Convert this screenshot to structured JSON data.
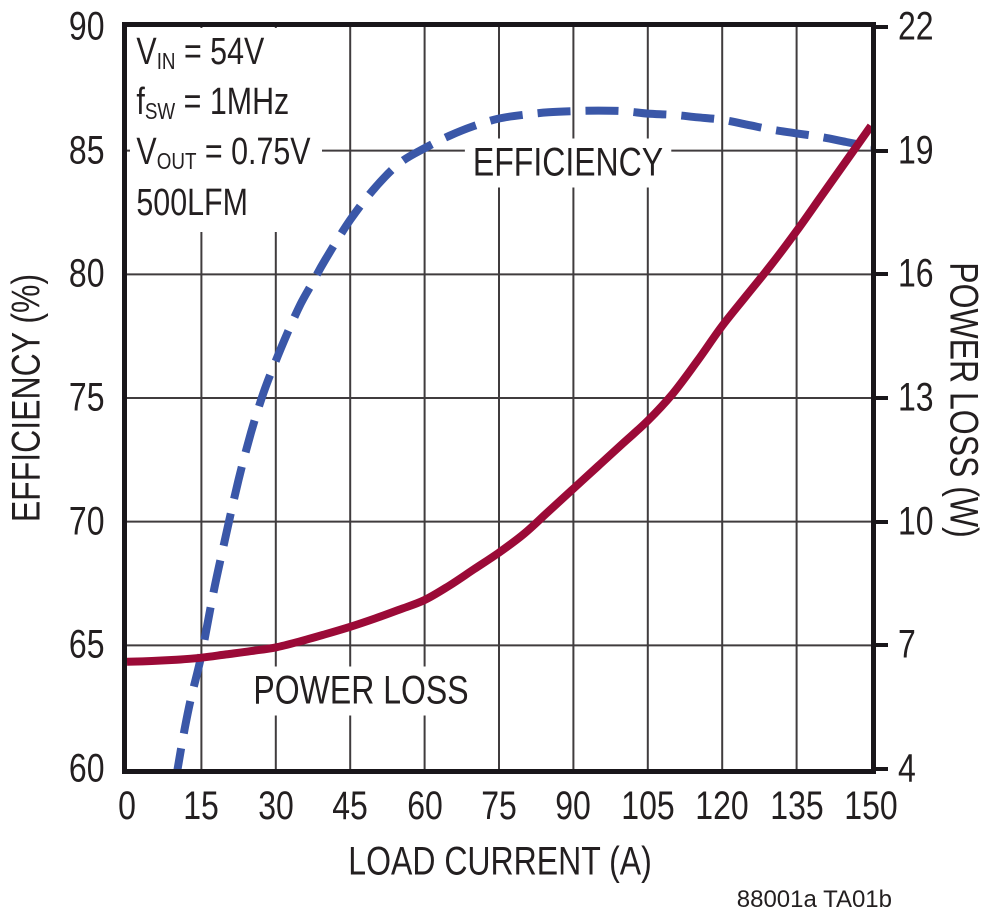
{
  "figure": {
    "footer": "88001a TA01b"
  },
  "chart_data": {
    "type": "line",
    "title": "",
    "grid": true,
    "legend": "inline-labels",
    "x_axis": {
      "label": "LOAD CURRENT (A)",
      "min": 0,
      "max": 150,
      "tick_step": 15,
      "ticks": [
        0,
        15,
        30,
        45,
        60,
        75,
        90,
        105,
        120,
        135,
        150
      ]
    },
    "y_axis_left": {
      "label": "EFFICIENCY (%)",
      "min": 60,
      "max": 90,
      "tick_step": 5,
      "ticks": [
        60,
        65,
        70,
        75,
        80,
        85,
        90
      ]
    },
    "y_axis_right": {
      "label": "POWER LOSS (W)",
      "min": 4,
      "max": 22,
      "tick_step": 3,
      "ticks": [
        4,
        7,
        10,
        13,
        16,
        19,
        22
      ]
    },
    "conditions": [
      [
        {
          "t": "V"
        },
        {
          "sub": "IN"
        },
        {
          "t": " = 54V"
        }
      ],
      [
        {
          "t": "f"
        },
        {
          "sub": "SW"
        },
        {
          "t": " = 1MHz"
        }
      ],
      [
        {
          "t": "V"
        },
        {
          "sub": "OUT"
        },
        {
          "t": " = 0.75V"
        }
      ],
      [
        {
          "t": "500LFM"
        }
      ]
    ],
    "series": [
      {
        "name": "EFFICIENCY",
        "axis": "left",
        "unit": "%",
        "color": "#3A57A8",
        "line_style": "dashed",
        "points": [
          [
            8.5,
            57.6
          ],
          [
            10.2,
            60.0
          ],
          [
            12.5,
            62.5
          ],
          [
            15,
            64.6
          ],
          [
            17.5,
            67.2
          ],
          [
            20,
            69.5
          ],
          [
            22.5,
            71.7
          ],
          [
            25,
            73.6
          ],
          [
            27.5,
            75.2
          ],
          [
            30,
            76.5
          ],
          [
            32.5,
            77.7
          ],
          [
            35,
            78.8
          ],
          [
            37.5,
            79.7
          ],
          [
            40,
            80.6
          ],
          [
            45,
            82.2
          ],
          [
            50,
            83.5
          ],
          [
            55,
            84.5
          ],
          [
            60,
            85.1
          ],
          [
            65,
            85.6
          ],
          [
            70,
            86.0
          ],
          [
            75,
            86.3
          ],
          [
            80,
            86.45
          ],
          [
            85,
            86.55
          ],
          [
            90,
            86.6
          ],
          [
            95,
            86.62
          ],
          [
            100,
            86.6
          ],
          [
            105,
            86.5
          ],
          [
            110,
            86.45
          ],
          [
            115,
            86.35
          ],
          [
            120,
            86.25
          ],
          [
            125,
            86.05
          ],
          [
            130,
            85.85
          ],
          [
            135,
            85.7
          ],
          [
            140,
            85.55
          ],
          [
            145,
            85.35
          ],
          [
            150,
            85.15
          ]
        ]
      },
      {
        "name": "POWER LOSS",
        "axis": "right",
        "unit": "W",
        "color": "#9B0A37",
        "line_style": "solid",
        "points": [
          [
            0,
            6.6
          ],
          [
            5,
            6.62
          ],
          [
            10,
            6.65
          ],
          [
            15,
            6.7
          ],
          [
            20,
            6.78
          ],
          [
            25,
            6.86
          ],
          [
            30,
            6.95
          ],
          [
            35,
            7.1
          ],
          [
            40,
            7.27
          ],
          [
            45,
            7.45
          ],
          [
            50,
            7.65
          ],
          [
            55,
            7.87
          ],
          [
            60,
            8.1
          ],
          [
            65,
            8.45
          ],
          [
            70,
            8.85
          ],
          [
            75,
            9.25
          ],
          [
            80,
            9.7
          ],
          [
            85,
            10.25
          ],
          [
            90,
            10.8
          ],
          [
            95,
            11.35
          ],
          [
            100,
            11.9
          ],
          [
            105,
            12.45
          ],
          [
            110,
            13.1
          ],
          [
            115,
            13.9
          ],
          [
            120,
            14.75
          ],
          [
            125,
            15.5
          ],
          [
            130,
            16.25
          ],
          [
            135,
            17.05
          ],
          [
            140,
            17.9
          ],
          [
            145,
            18.75
          ],
          [
            150,
            19.6
          ]
        ]
      }
    ]
  }
}
